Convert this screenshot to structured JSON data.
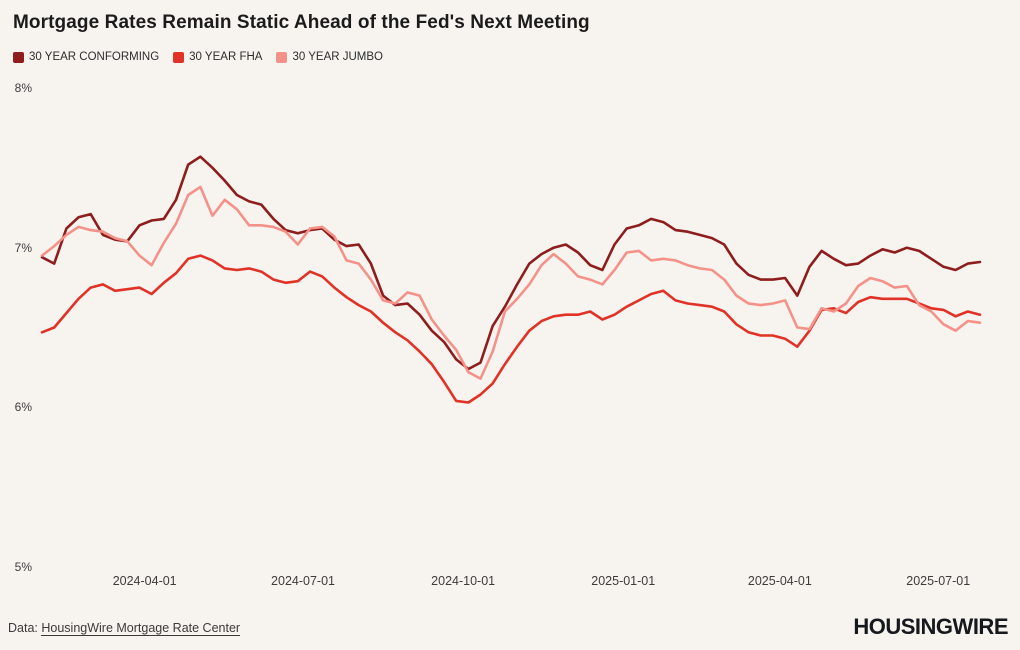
{
  "header": {
    "title": "Mortgage Rates Remain Static Ahead of the Fed's Next Meeting"
  },
  "chart_data": {
    "type": "line",
    "title": "Mortgage Rates Remain Static Ahead of the Fed's Next Meeting",
    "xlabel": "",
    "ylabel": "",
    "ylim": [
      5,
      8
    ],
    "grid": false,
    "legend_position": "top-left",
    "y_ticks": [
      {
        "value": 8,
        "label": "8%"
      },
      {
        "value": 7,
        "label": "7%"
      },
      {
        "value": 6,
        "label": "6%"
      },
      {
        "value": 5,
        "label": "5%"
      }
    ],
    "x_ticks": [
      "2024-04-01",
      "2024-07-01",
      "2024-10-01",
      "2025-01-01",
      "2025-04-01",
      "2025-07-01"
    ],
    "dates": [
      "2024-02-02",
      "2024-02-09",
      "2024-02-16",
      "2024-02-23",
      "2024-03-01",
      "2024-03-08",
      "2024-03-15",
      "2024-03-22",
      "2024-03-29",
      "2024-04-05",
      "2024-04-12",
      "2024-04-19",
      "2024-04-26",
      "2024-05-03",
      "2024-05-10",
      "2024-05-17",
      "2024-05-24",
      "2024-05-31",
      "2024-06-07",
      "2024-06-14",
      "2024-06-21",
      "2024-06-28",
      "2024-07-05",
      "2024-07-12",
      "2024-07-19",
      "2024-07-26",
      "2024-08-02",
      "2024-08-09",
      "2024-08-16",
      "2024-08-23",
      "2024-08-30",
      "2024-09-06",
      "2024-09-13",
      "2024-09-20",
      "2024-09-27",
      "2024-10-04",
      "2024-10-11",
      "2024-10-18",
      "2024-10-25",
      "2024-11-01",
      "2024-11-08",
      "2024-11-15",
      "2024-11-22",
      "2024-11-29",
      "2024-12-06",
      "2024-12-13",
      "2024-12-20",
      "2024-12-27",
      "2025-01-03",
      "2025-01-10",
      "2025-01-17",
      "2025-01-24",
      "2025-01-31",
      "2025-02-07",
      "2025-02-14",
      "2025-02-21",
      "2025-02-28",
      "2025-03-07",
      "2025-03-14",
      "2025-03-21",
      "2025-03-28",
      "2025-04-04",
      "2025-04-11",
      "2025-04-18",
      "2025-04-25",
      "2025-05-02",
      "2025-05-09",
      "2025-05-16",
      "2025-05-23",
      "2025-05-30",
      "2025-06-06",
      "2025-06-13",
      "2025-06-20",
      "2025-06-27",
      "2025-07-04",
      "2025-07-11",
      "2025-07-18",
      "2025-07-25"
    ],
    "series": [
      {
        "name": "30 YEAR CONFORMING",
        "color": "#8e1d1d",
        "values": [
          6.94,
          6.9,
          7.12,
          7.19,
          7.21,
          7.08,
          7.05,
          7.04,
          7.14,
          7.17,
          7.18,
          7.3,
          7.52,
          7.57,
          7.5,
          7.42,
          7.33,
          7.29,
          7.27,
          7.18,
          7.11,
          7.09,
          7.11,
          7.12,
          7.05,
          7.01,
          7.02,
          6.9,
          6.7,
          6.64,
          6.65,
          6.58,
          6.48,
          6.41,
          6.3,
          6.24,
          6.28,
          6.51,
          6.63,
          6.77,
          6.9,
          6.96,
          7.0,
          7.02,
          6.97,
          6.89,
          6.86,
          7.02,
          7.12,
          7.14,
          7.18,
          7.16,
          7.11,
          7.1,
          7.08,
          7.06,
          7.02,
          6.9,
          6.83,
          6.8,
          6.8,
          6.81,
          6.7,
          6.88,
          6.98,
          6.93,
          6.89,
          6.9,
          6.95,
          6.99,
          6.97,
          7.0,
          6.98,
          6.93,
          6.88,
          6.86,
          6.9,
          6.91
        ]
      },
      {
        "name": "30 YEAR FHA",
        "color": "#e03226",
        "values": [
          6.47,
          6.5,
          6.59,
          6.68,
          6.75,
          6.77,
          6.73,
          6.74,
          6.75,
          6.71,
          6.78,
          6.84,
          6.93,
          6.95,
          6.92,
          6.87,
          6.86,
          6.87,
          6.85,
          6.8,
          6.78,
          6.79,
          6.85,
          6.82,
          6.75,
          6.69,
          6.64,
          6.6,
          6.53,
          6.47,
          6.42,
          6.35,
          6.27,
          6.16,
          6.04,
          6.03,
          6.08,
          6.15,
          6.27,
          6.38,
          6.48,
          6.54,
          6.57,
          6.58,
          6.58,
          6.6,
          6.55,
          6.58,
          6.63,
          6.67,
          6.71,
          6.73,
          6.67,
          6.65,
          6.64,
          6.63,
          6.6,
          6.52,
          6.47,
          6.45,
          6.45,
          6.43,
          6.38,
          6.48,
          6.61,
          6.62,
          6.59,
          6.66,
          6.69,
          6.68,
          6.68,
          6.68,
          6.65,
          6.62,
          6.61,
          6.57,
          6.6,
          6.58
        ]
      },
      {
        "name": "30 YEAR JUMBO",
        "color": "#f4928a",
        "values": [
          6.95,
          7.01,
          7.08,
          7.13,
          7.11,
          7.1,
          7.06,
          7.04,
          6.95,
          6.89,
          7.03,
          7.15,
          7.33,
          7.38,
          7.2,
          7.3,
          7.24,
          7.14,
          7.14,
          7.13,
          7.1,
          7.02,
          7.12,
          7.13,
          7.07,
          6.92,
          6.9,
          6.8,
          6.67,
          6.65,
          6.72,
          6.7,
          6.55,
          6.45,
          6.36,
          6.22,
          6.18,
          6.35,
          6.6,
          6.68,
          6.77,
          6.89,
          6.96,
          6.9,
          6.82,
          6.8,
          6.77,
          6.86,
          6.97,
          6.98,
          6.92,
          6.93,
          6.92,
          6.89,
          6.87,
          6.86,
          6.8,
          6.7,
          6.65,
          6.64,
          6.65,
          6.67,
          6.5,
          6.49,
          6.62,
          6.6,
          6.65,
          6.76,
          6.81,
          6.79,
          6.75,
          6.76,
          6.64,
          6.6,
          6.52,
          6.48,
          6.54,
          6.53
        ]
      }
    ]
  },
  "footer": {
    "data_prefix": "Data:",
    "source_link": "HousingWire Mortgage Rate Center",
    "logo": "HOUSINGWIRE"
  }
}
